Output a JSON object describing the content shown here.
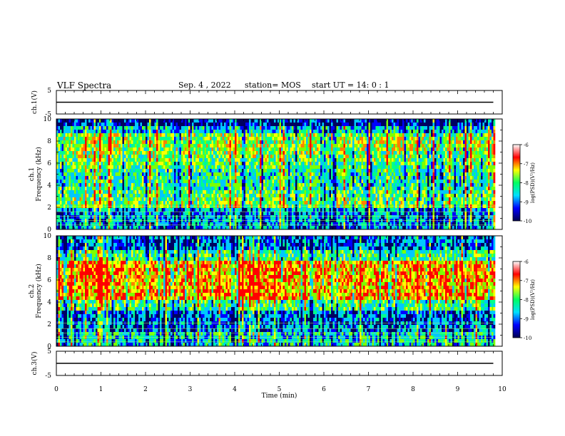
{
  "header": {
    "title": "VLF Spectra",
    "date": "Sep. 4 , 2022",
    "station": "station= MOS",
    "start_ut": "start UT =  14: 0  : 1"
  },
  "chart_data": [
    {
      "type": "line",
      "panel": "ch1-waveform",
      "ylabel": "ch.1(V)",
      "ylim": [
        -5,
        5
      ],
      "yticks": [
        "5",
        "-5"
      ],
      "xlim": [
        0,
        10
      ],
      "x": [
        0,
        9.8
      ],
      "values": [
        0,
        0
      ]
    },
    {
      "type": "heatmap",
      "panel": "ch1-spectrogram",
      "ylabel": "ch.1 Frequency (kHz)",
      "ylim": [
        0,
        10
      ],
      "yticks": [
        "0",
        "2",
        "4",
        "6",
        "8",
        "10"
      ],
      "xlim": [
        0,
        10
      ],
      "data_end_min": 9.8,
      "dominant_band_khz": [
        2,
        9
      ]
    },
    {
      "type": "heatmap",
      "panel": "ch2-spectrogram",
      "ylabel": "ch.2 Frequency (kHz)",
      "ylim": [
        0,
        10
      ],
      "yticks": [
        "0",
        "2",
        "4",
        "6",
        "8",
        "10"
      ],
      "xlim": [
        0,
        10
      ],
      "data_end_min": 9.8,
      "dominant_band_khz": [
        4.5,
        8
      ]
    },
    {
      "type": "line",
      "panel": "ch3-waveform",
      "ylabel": "ch.3(V)",
      "ylim": [
        -5,
        5
      ],
      "yticks": [
        "5",
        "-5"
      ],
      "xlim": [
        0,
        10
      ],
      "x": [
        0,
        9.8
      ],
      "values": [
        0,
        0
      ]
    }
  ],
  "x_axis": {
    "label": "Time  (min)",
    "ticks": [
      "0",
      "1",
      "2",
      "3",
      "4",
      "5",
      "6",
      "7",
      "8",
      "9",
      "10"
    ]
  },
  "colorbar": {
    "label": "log(PSD)(V²/Hz)",
    "ticks": [
      "-6",
      "-7",
      "-8",
      "-9",
      "-10"
    ],
    "range": [
      -10,
      -6
    ],
    "colors": [
      "#000050",
      "#0000ff",
      "#00e0ff",
      "#00ff60",
      "#ffff00",
      "#ff0000",
      "#ffffff"
    ]
  }
}
